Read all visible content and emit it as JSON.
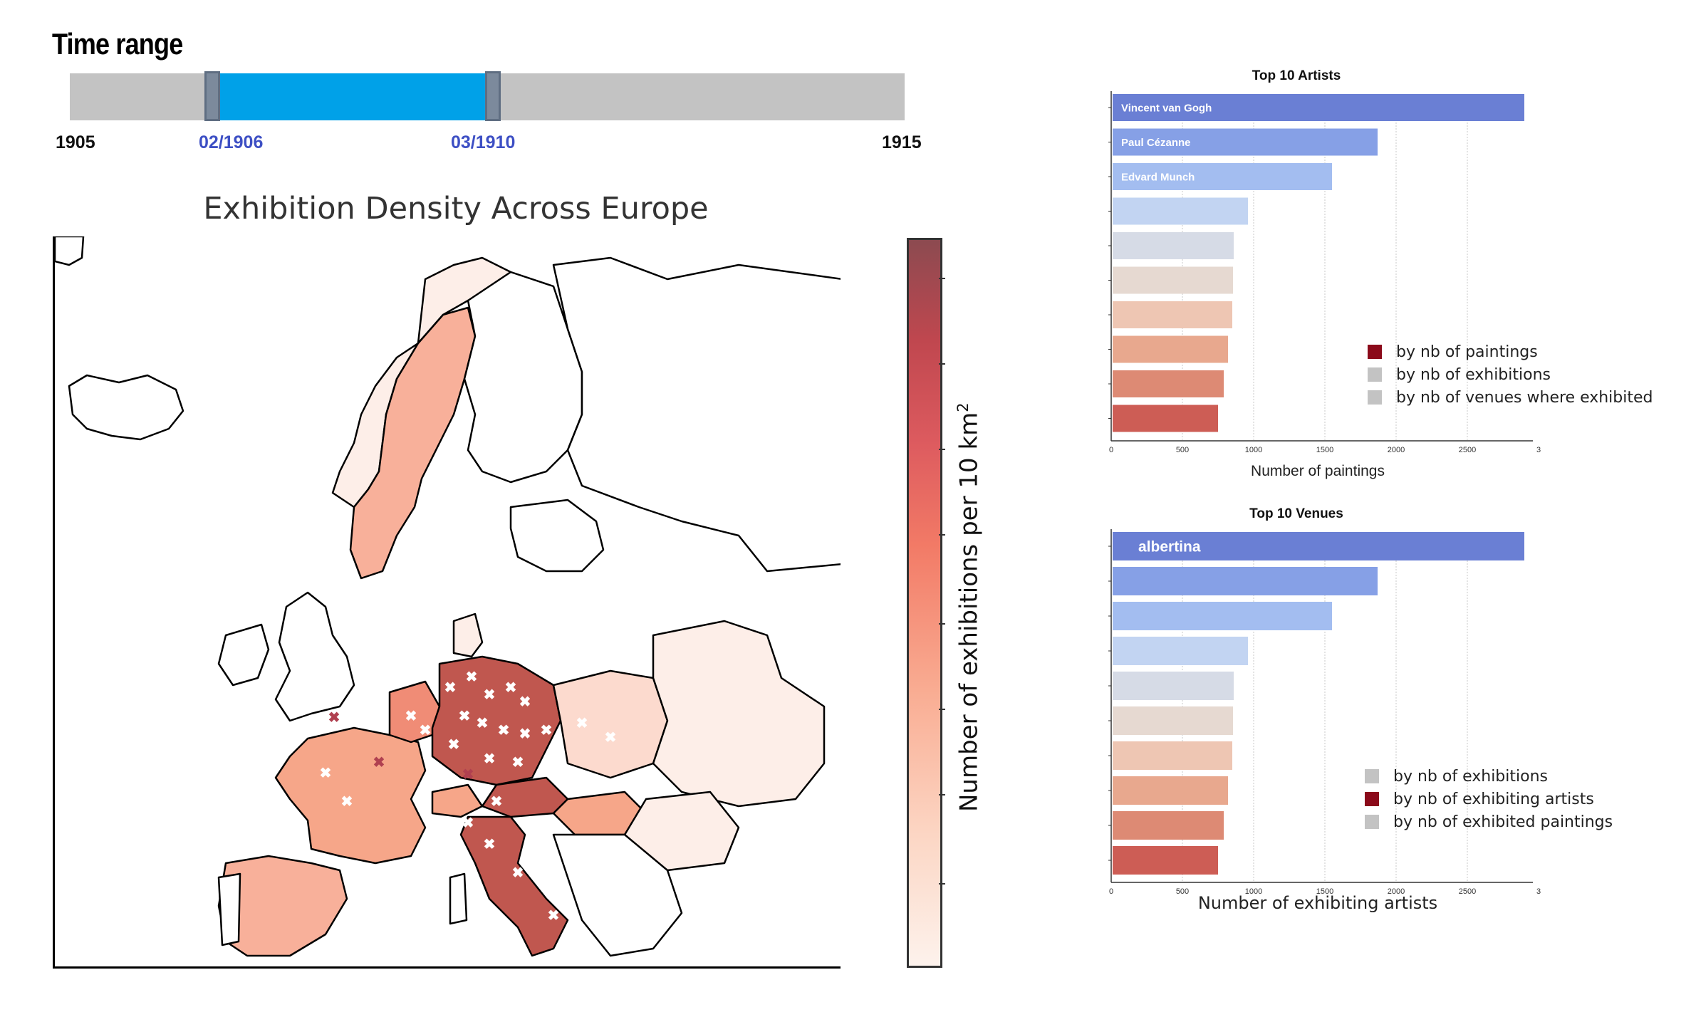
{
  "time_range": {
    "title": "Time range",
    "min_label": "1905",
    "max_label": "1915",
    "selected_start": "02/1906",
    "selected_end": "03/1910",
    "selection_fraction": [
      0.2,
      0.54
    ],
    "colors": {
      "track": "#c3c3c3",
      "range": "#00a1e8",
      "handle": "#7c8a9c"
    }
  },
  "map": {
    "title": "Exhibition Density Across Europe",
    "colorbar_label": "Number of exhibitions per 10 km",
    "colorbar_superscript": "2",
    "marker_glyph": "✖"
  },
  "top_artists": {
    "title": "Top 10 Artists",
    "xlabel": "Number of paintings",
    "legend": [
      {
        "label": "by nb of paintings",
        "color": "#8b0a1a"
      },
      {
        "label": "by nb of exhibitions",
        "color": "#c3c3c3"
      },
      {
        "label": "by nb of venues where exhibited",
        "color": "#c3c3c3"
      }
    ]
  },
  "top_venues": {
    "title": "Top 10  Venues",
    "xlabel": "Number of exhibiting artists",
    "legend": [
      {
        "label": "by nb of exhibitions",
        "color": "#c3c3c3"
      },
      {
        "label": "by nb of exhibiting artists",
        "color": "#8b0a1a"
      },
      {
        "label": "by nb of exhibited paintings",
        "color": "#c3c3c3"
      }
    ]
  },
  "chart_data": [
    {
      "type": "bar",
      "orientation": "horizontal",
      "title": "Top 10 Artists",
      "xlabel": "Number of paintings",
      "categories": [
        "Vincent van Gogh",
        "Paul Cézanne",
        "Edvard Munch",
        "",
        "",
        "",
        "",
        "",
        "",
        ""
      ],
      "values": [
        2890,
        1860,
        1540,
        950,
        850,
        845,
        840,
        810,
        780,
        740
      ],
      "xticks": [
        "0",
        "500",
        "1000",
        "1500",
        "2000",
        "2500",
        "3"
      ],
      "xlim": [
        0,
        2950
      ],
      "grid": "vertical",
      "legend_position": "lower-right",
      "colors": [
        "#6a7fd4",
        "#86a0e6",
        "#a3bdf0",
        "#c2d4f2",
        "#d6dbe6",
        "#e6d9d1",
        "#eec6b3",
        "#e8a88e",
        "#dd8a74",
        "#cd5d55"
      ]
    },
    {
      "type": "bar",
      "orientation": "horizontal",
      "title": "Top 10  Venues",
      "xlabel": "Number of exhibiting artists",
      "categories": [
        "albertina",
        "",
        "",
        "",
        "",
        "",
        "",
        "",
        "",
        ""
      ],
      "values": [
        2890,
        1860,
        1540,
        950,
        850,
        845,
        840,
        810,
        780,
        740
      ],
      "xticks": [
        "0",
        "500",
        "1000",
        "1500",
        "2000",
        "2500",
        "3"
      ],
      "xlim": [
        0,
        2950
      ],
      "grid": "vertical",
      "legend_position": "lower-right",
      "colors": [
        "#6a7fd4",
        "#86a0e6",
        "#a3bdf0",
        "#c2d4f2",
        "#d6dbe6",
        "#e6d9d1",
        "#eec6b3",
        "#e8a88e",
        "#dd8a74",
        "#cd5d55"
      ]
    }
  ]
}
